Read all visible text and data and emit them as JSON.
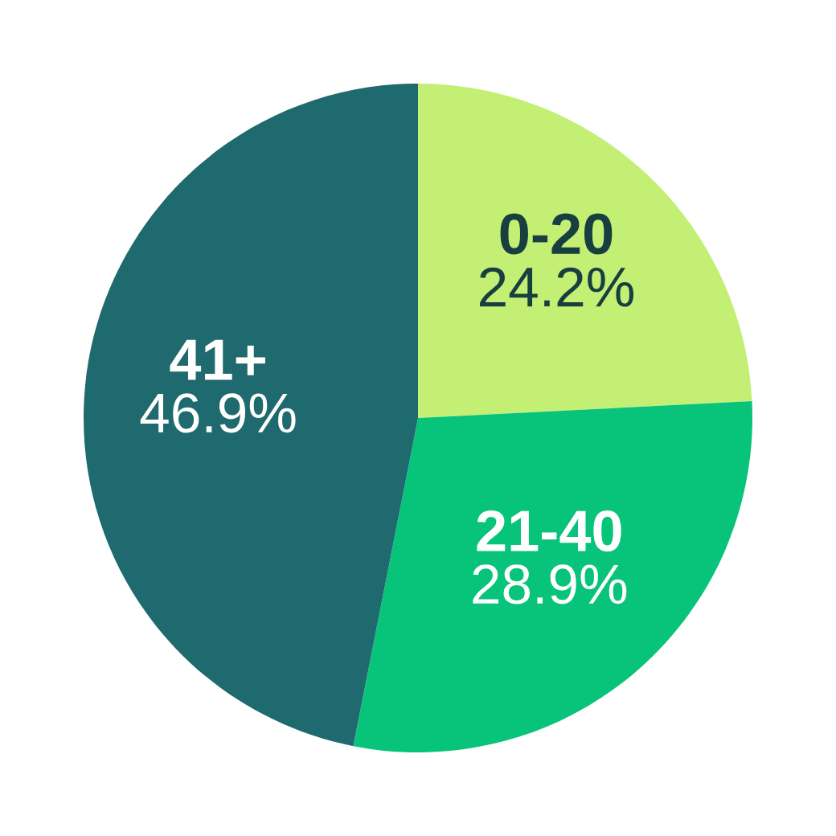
{
  "chart_data": {
    "type": "pie",
    "categories": [
      "0-20",
      "21-40",
      "41+"
    ],
    "values": [
      24.2,
      28.9,
      46.9
    ],
    "value_labels": [
      "24.2%",
      "28.9%",
      "46.9%"
    ],
    "colors": [
      "#c3ef74",
      "#08c47b",
      "#1f6a6e"
    ],
    "legend": false
  }
}
